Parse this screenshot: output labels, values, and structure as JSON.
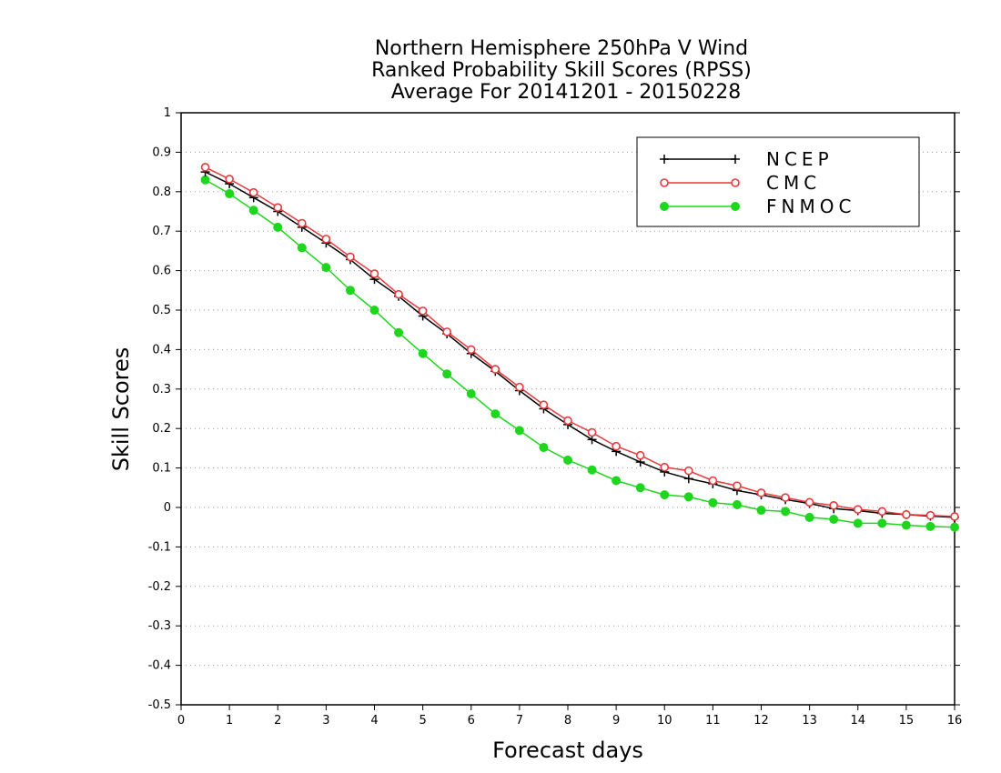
{
  "chart_data": {
    "type": "line",
    "title": [
      "Northern Hemisphere 250hPa V Wind",
      "Ranked Probability Skill Scores (RPSS)",
      "Average For 20141201 - 20150228"
    ],
    "xlabel": "Forecast days",
    "ylabel": "Skill Scores",
    "xlim": [
      0,
      16
    ],
    "ylim": [
      -0.5,
      1
    ],
    "xticks": [
      "0",
      "1",
      "2",
      "3",
      "4",
      "5",
      "6",
      "7",
      "8",
      "9",
      "10",
      "11",
      "12",
      "13",
      "14",
      "15",
      "16"
    ],
    "xtick_values": [
      0,
      1,
      2,
      3,
      4,
      5,
      6,
      7,
      8,
      9,
      10,
      11,
      12,
      13,
      14,
      15,
      16
    ],
    "yticks": [
      "1",
      "0.9",
      "0.8",
      "0.7",
      "0.6",
      "0.5",
      "0.4",
      "0.3",
      "0.2",
      "0.1",
      "0",
      "-0.1",
      "-0.2",
      "-0.3",
      "-0.4",
      "-0.5"
    ],
    "ytick_values": [
      1,
      0.9,
      0.8,
      0.7,
      0.6,
      0.5,
      0.4,
      0.3,
      0.2,
      0.1,
      0,
      -0.1,
      -0.2,
      -0.3,
      -0.4,
      -0.5
    ],
    "grid": true,
    "legend_position": "top-right",
    "x": [
      0.5,
      1,
      1.5,
      2,
      2.5,
      3,
      3.5,
      4,
      4.5,
      5,
      5.5,
      6,
      6.5,
      7,
      7.5,
      8,
      8.5,
      9,
      9.5,
      10,
      10.5,
      11,
      11.5,
      12,
      12.5,
      13,
      13.5,
      14,
      14.5,
      15,
      15.5,
      16
    ],
    "series": [
      {
        "name": "NCEP",
        "color": "#000000",
        "marker": "plus",
        "values": [
          0.85,
          0.82,
          0.785,
          0.75,
          0.71,
          0.67,
          0.628,
          0.578,
          0.535,
          0.485,
          0.44,
          0.39,
          0.345,
          0.296,
          0.25,
          0.21,
          0.172,
          0.142,
          0.115,
          0.09,
          0.073,
          0.06,
          0.043,
          0.032,
          0.02,
          0.01,
          -0.003,
          -0.008,
          -0.015,
          -0.018,
          -0.022,
          -0.025
        ]
      },
      {
        "name": "CMC",
        "color": "#e8393c",
        "marker": "open-circle",
        "values": [
          0.862,
          0.832,
          0.798,
          0.76,
          0.72,
          0.68,
          0.635,
          0.592,
          0.54,
          0.498,
          0.445,
          0.4,
          0.35,
          0.305,
          0.26,
          0.22,
          0.19,
          0.155,
          0.132,
          0.102,
          0.093,
          0.068,
          0.055,
          0.037,
          0.025,
          0.013,
          0.005,
          -0.005,
          -0.01,
          -0.018,
          -0.02,
          -0.023
        ]
      },
      {
        "name": "FNMOC",
        "color": "#1ed61e",
        "marker": "filled-circle",
        "values": [
          0.83,
          0.795,
          0.753,
          0.71,
          0.658,
          0.608,
          0.55,
          0.5,
          0.443,
          0.39,
          0.338,
          0.288,
          0.237,
          0.195,
          0.152,
          0.12,
          0.095,
          0.068,
          0.05,
          0.032,
          0.027,
          0.012,
          0.007,
          -0.007,
          -0.01,
          -0.025,
          -0.03,
          -0.04,
          -0.04,
          -0.045,
          -0.048,
          -0.05
        ]
      }
    ]
  }
}
